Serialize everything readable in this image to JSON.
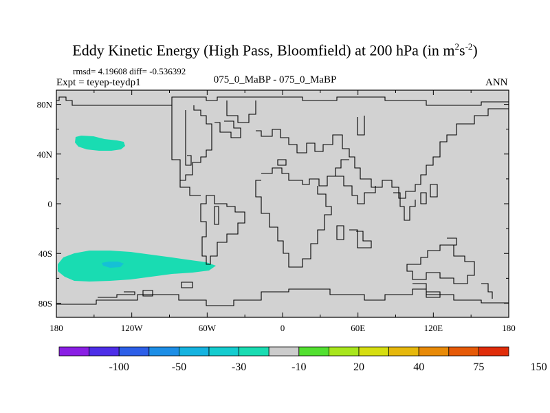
{
  "title": {
    "main": "Eddy Kinetic Energy (High Pass, Bloomfield) at 200 hPa (in m",
    "sup1": "2",
    "mid": "s",
    "sup2": "-2",
    "end": ")"
  },
  "stats": "rmsd= 4.19608  diff= -0.536392",
  "expt": "Expt = teyep-teydp1",
  "case_label": "075_0_MaBP - 075_0_MaBP",
  "season": "ANN",
  "lat_labels": [
    "80N",
    "40N",
    "0",
    "40S",
    "80S"
  ],
  "lon_labels": [
    "180",
    "120W",
    "60W",
    "0",
    "60E",
    "120E",
    "180"
  ],
  "colorbar": {
    "colors": [
      "#8a1fe4",
      "#4d2ee8",
      "#2d5fe8",
      "#1d8ee6",
      "#15b3e0",
      "#14cccf",
      "#19dcb2",
      "#cccccc",
      "#52e030",
      "#a8e61c",
      "#d6de10",
      "#e6b80c",
      "#e88a08",
      "#e65a08",
      "#e02d0a"
    ],
    "labels": [
      "-100",
      "-50",
      "-30",
      "-10",
      "20",
      "40",
      "75",
      "150"
    ]
  },
  "land_fill": "#d2d2d2",
  "anomaly_colors": {
    "light": "#19dcb2",
    "mid": "#15c0d6"
  }
}
